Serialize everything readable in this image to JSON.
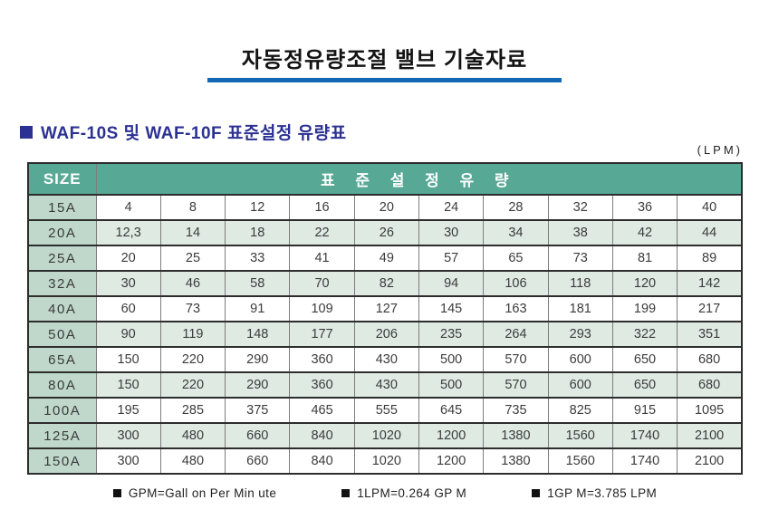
{
  "page": {
    "title": "자동정유량조절 밸브 기술자료",
    "unit_label": "(LPM)"
  },
  "section": {
    "heading": "WAF-10S 및 WAF-10F 표준설정 유량표"
  },
  "table": {
    "size_header": "SIZE",
    "flow_header": "표 준 설 정 유 량",
    "rows": [
      {
        "size": "15A",
        "values": [
          "4",
          "8",
          "12",
          "16",
          "20",
          "24",
          "28",
          "32",
          "36",
          "40"
        ]
      },
      {
        "size": "20A",
        "values": [
          "12,3",
          "14",
          "18",
          "22",
          "26",
          "30",
          "34",
          "38",
          "42",
          "44"
        ]
      },
      {
        "size": "25A",
        "values": [
          "20",
          "25",
          "33",
          "41",
          "49",
          "57",
          "65",
          "73",
          "81",
          "89"
        ]
      },
      {
        "size": "32A",
        "values": [
          "30",
          "46",
          "58",
          "70",
          "82",
          "94",
          "106",
          "118",
          "120",
          "142"
        ]
      },
      {
        "size": "40A",
        "values": [
          "60",
          "73",
          "91",
          "109",
          "127",
          "145",
          "163",
          "181",
          "199",
          "217"
        ]
      },
      {
        "size": "50A",
        "values": [
          "90",
          "119",
          "148",
          "177",
          "206",
          "235",
          "264",
          "293",
          "322",
          "351"
        ]
      },
      {
        "size": "65A",
        "values": [
          "150",
          "220",
          "290",
          "360",
          "430",
          "500",
          "570",
          "600",
          "650",
          "680"
        ]
      },
      {
        "size": "80A",
        "values": [
          "150",
          "220",
          "290",
          "360",
          "430",
          "500",
          "570",
          "600",
          "650",
          "680"
        ]
      },
      {
        "size": "100A",
        "values": [
          "195",
          "285",
          "375",
          "465",
          "555",
          "645",
          "735",
          "825",
          "915",
          "1095"
        ]
      },
      {
        "size": "125A",
        "values": [
          "300",
          "480",
          "660",
          "840",
          "1020",
          "1200",
          "1380",
          "1560",
          "1740",
          "2100"
        ]
      },
      {
        "size": "150A",
        "values": [
          "300",
          "480",
          "660",
          "840",
          "1020",
          "1200",
          "1380",
          "1560",
          "1740",
          "2100"
        ]
      }
    ]
  },
  "footnotes": [
    "GPM=Gall on Per Min ute",
    "1LPM=0.264  GP M",
    "1GP M=3.785  LPM"
  ],
  "colors": {
    "header_teal": "#57a894",
    "size_column_bg": "#bfd8cb",
    "alt_row_bg": "#dfeae3",
    "title_underline_blue": "#1568b3",
    "section_navy": "#2b3192"
  }
}
